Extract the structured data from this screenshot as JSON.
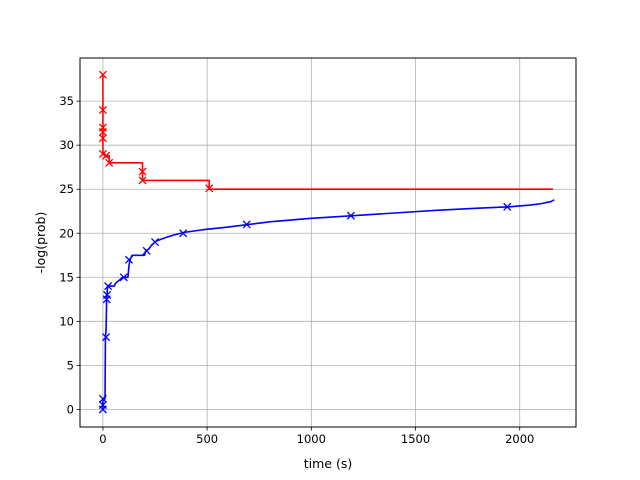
{
  "chart_data": {
    "type": "line",
    "xlabel": "time (s)",
    "ylabel": "-log(prob)",
    "xlim": [
      -110,
      2270
    ],
    "ylim": [
      -2,
      39.9
    ],
    "xticks": [
      0,
      500,
      1000,
      1500,
      2000
    ],
    "yticks": [
      0,
      5,
      10,
      15,
      20,
      25,
      30,
      35
    ],
    "grid": true,
    "series": [
      {
        "color": "#ff0000",
        "line_shape": "step",
        "line": [
          [
            0,
            38
          ],
          [
            0,
            29
          ],
          [
            10,
            29
          ],
          [
            10,
            28.8
          ],
          [
            30,
            28.8
          ],
          [
            30,
            28
          ],
          [
            190,
            28
          ],
          [
            190,
            26
          ],
          [
            510,
            26
          ],
          [
            510,
            25
          ],
          [
            2160,
            25
          ]
        ],
        "markers": [
          [
            0,
            38
          ],
          [
            0,
            34
          ],
          [
            0,
            32
          ],
          [
            0,
            31.5
          ],
          [
            0,
            30.8
          ],
          [
            0,
            29
          ],
          [
            15,
            28.8
          ],
          [
            30,
            28
          ],
          [
            190,
            27
          ],
          [
            190,
            26
          ],
          [
            510,
            25.1
          ]
        ]
      },
      {
        "color": "#0000ff",
        "line_shape": "curve",
        "line": [
          [
            0,
            0
          ],
          [
            0,
            1
          ],
          [
            10,
            1.2
          ],
          [
            12,
            8.2
          ],
          [
            15,
            9
          ],
          [
            18,
            12.6
          ],
          [
            22,
            13.8
          ],
          [
            25,
            14
          ],
          [
            55,
            14
          ],
          [
            60,
            14.3
          ],
          [
            95,
            15
          ],
          [
            120,
            15
          ],
          [
            125,
            16.3
          ],
          [
            130,
            17
          ],
          [
            140,
            17.5
          ],
          [
            200,
            17.5
          ],
          [
            205,
            18
          ],
          [
            220,
            18.2
          ],
          [
            235,
            18.7
          ],
          [
            255,
            19.1
          ],
          [
            300,
            19.5
          ],
          [
            340,
            19.8
          ],
          [
            390,
            20.1
          ],
          [
            480,
            20.4
          ],
          [
            600,
            20.7
          ],
          [
            700,
            21
          ],
          [
            800,
            21.3
          ],
          [
            900,
            21.5
          ],
          [
            1000,
            21.7
          ],
          [
            1200,
            22
          ],
          [
            1400,
            22.3
          ],
          [
            1600,
            22.6
          ],
          [
            1800,
            22.85
          ],
          [
            1950,
            23
          ],
          [
            2050,
            23.2
          ],
          [
            2100,
            23.35
          ],
          [
            2150,
            23.6
          ],
          [
            2165,
            23.8
          ]
        ],
        "markers": [
          [
            0,
            0
          ],
          [
            0,
            0.5
          ],
          [
            0,
            1.2
          ],
          [
            15,
            8.2
          ],
          [
            18,
            12.5
          ],
          [
            20,
            13
          ],
          [
            25,
            14
          ],
          [
            100,
            15
          ],
          [
            125,
            17
          ],
          [
            210,
            18
          ],
          [
            250,
            19
          ],
          [
            385,
            20
          ],
          [
            690,
            21
          ],
          [
            1190,
            22
          ],
          [
            1940,
            23
          ]
        ]
      }
    ]
  }
}
